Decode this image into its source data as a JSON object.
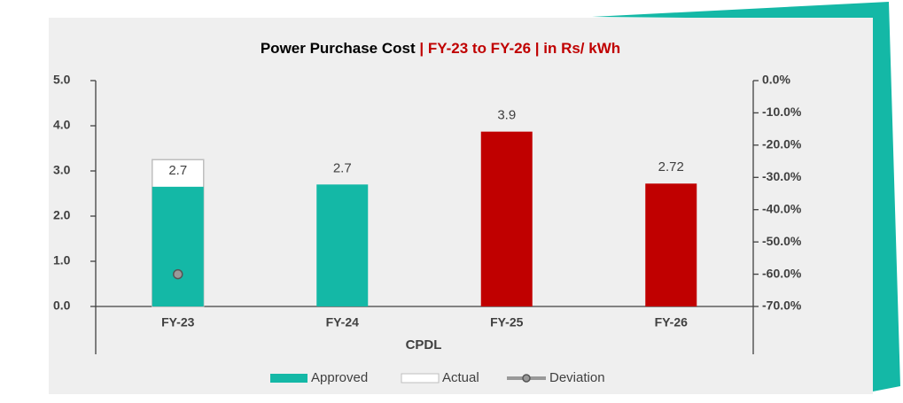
{
  "chart_data": {
    "type": "bar",
    "title": "Power Purchase Cost",
    "subtitle": "| FY-23 to FY-26 | in Rs/ kWh",
    "x_label": "CPDL",
    "categories": [
      "FY-23",
      "FY-24",
      "FY-25",
      "FY-26"
    ],
    "series": [
      {
        "name": "Approved",
        "color": "#14b8a6",
        "colors": [
          "#14b8a6",
          "#14b8a6",
          "#c00000",
          "#c00000"
        ],
        "values": [
          2.65,
          2.7,
          3.87,
          2.72
        ],
        "value_labels": [
          "2.7",
          "2.7",
          "3.9",
          "2.72"
        ]
      },
      {
        "name": "Actual",
        "color": "#ffffff",
        "values": [
          3.25,
          null,
          null,
          null
        ]
      },
      {
        "name": "Deviation",
        "color": "#999999",
        "axis": "y2",
        "values": [
          -60,
          null,
          null,
          null
        ]
      }
    ],
    "ylim": [
      0,
      5
    ],
    "yticks": [
      {
        "value": 0,
        "label": "0.0"
      },
      {
        "value": 1,
        "label": "1.0"
      },
      {
        "value": 2,
        "label": "2.0"
      },
      {
        "value": 3,
        "label": "3.0"
      },
      {
        "value": 4,
        "label": "4.0"
      },
      {
        "value": 5,
        "label": "5.0"
      }
    ],
    "y2lim": [
      -70,
      0
    ],
    "y2ticks": [
      {
        "value": -70,
        "label": "-70.0%"
      },
      {
        "value": -60,
        "label": "-60.0%"
      },
      {
        "value": -50,
        "label": "-50.0%"
      },
      {
        "value": -40,
        "label": "-40.0%"
      },
      {
        "value": -30,
        "label": "-30.0%"
      },
      {
        "value": -20,
        "label": "-20.0%"
      },
      {
        "value": -10,
        "label": "-10.0%"
      },
      {
        "value": 0,
        "label": "0.0%"
      }
    ],
    "legend": "bottom"
  }
}
